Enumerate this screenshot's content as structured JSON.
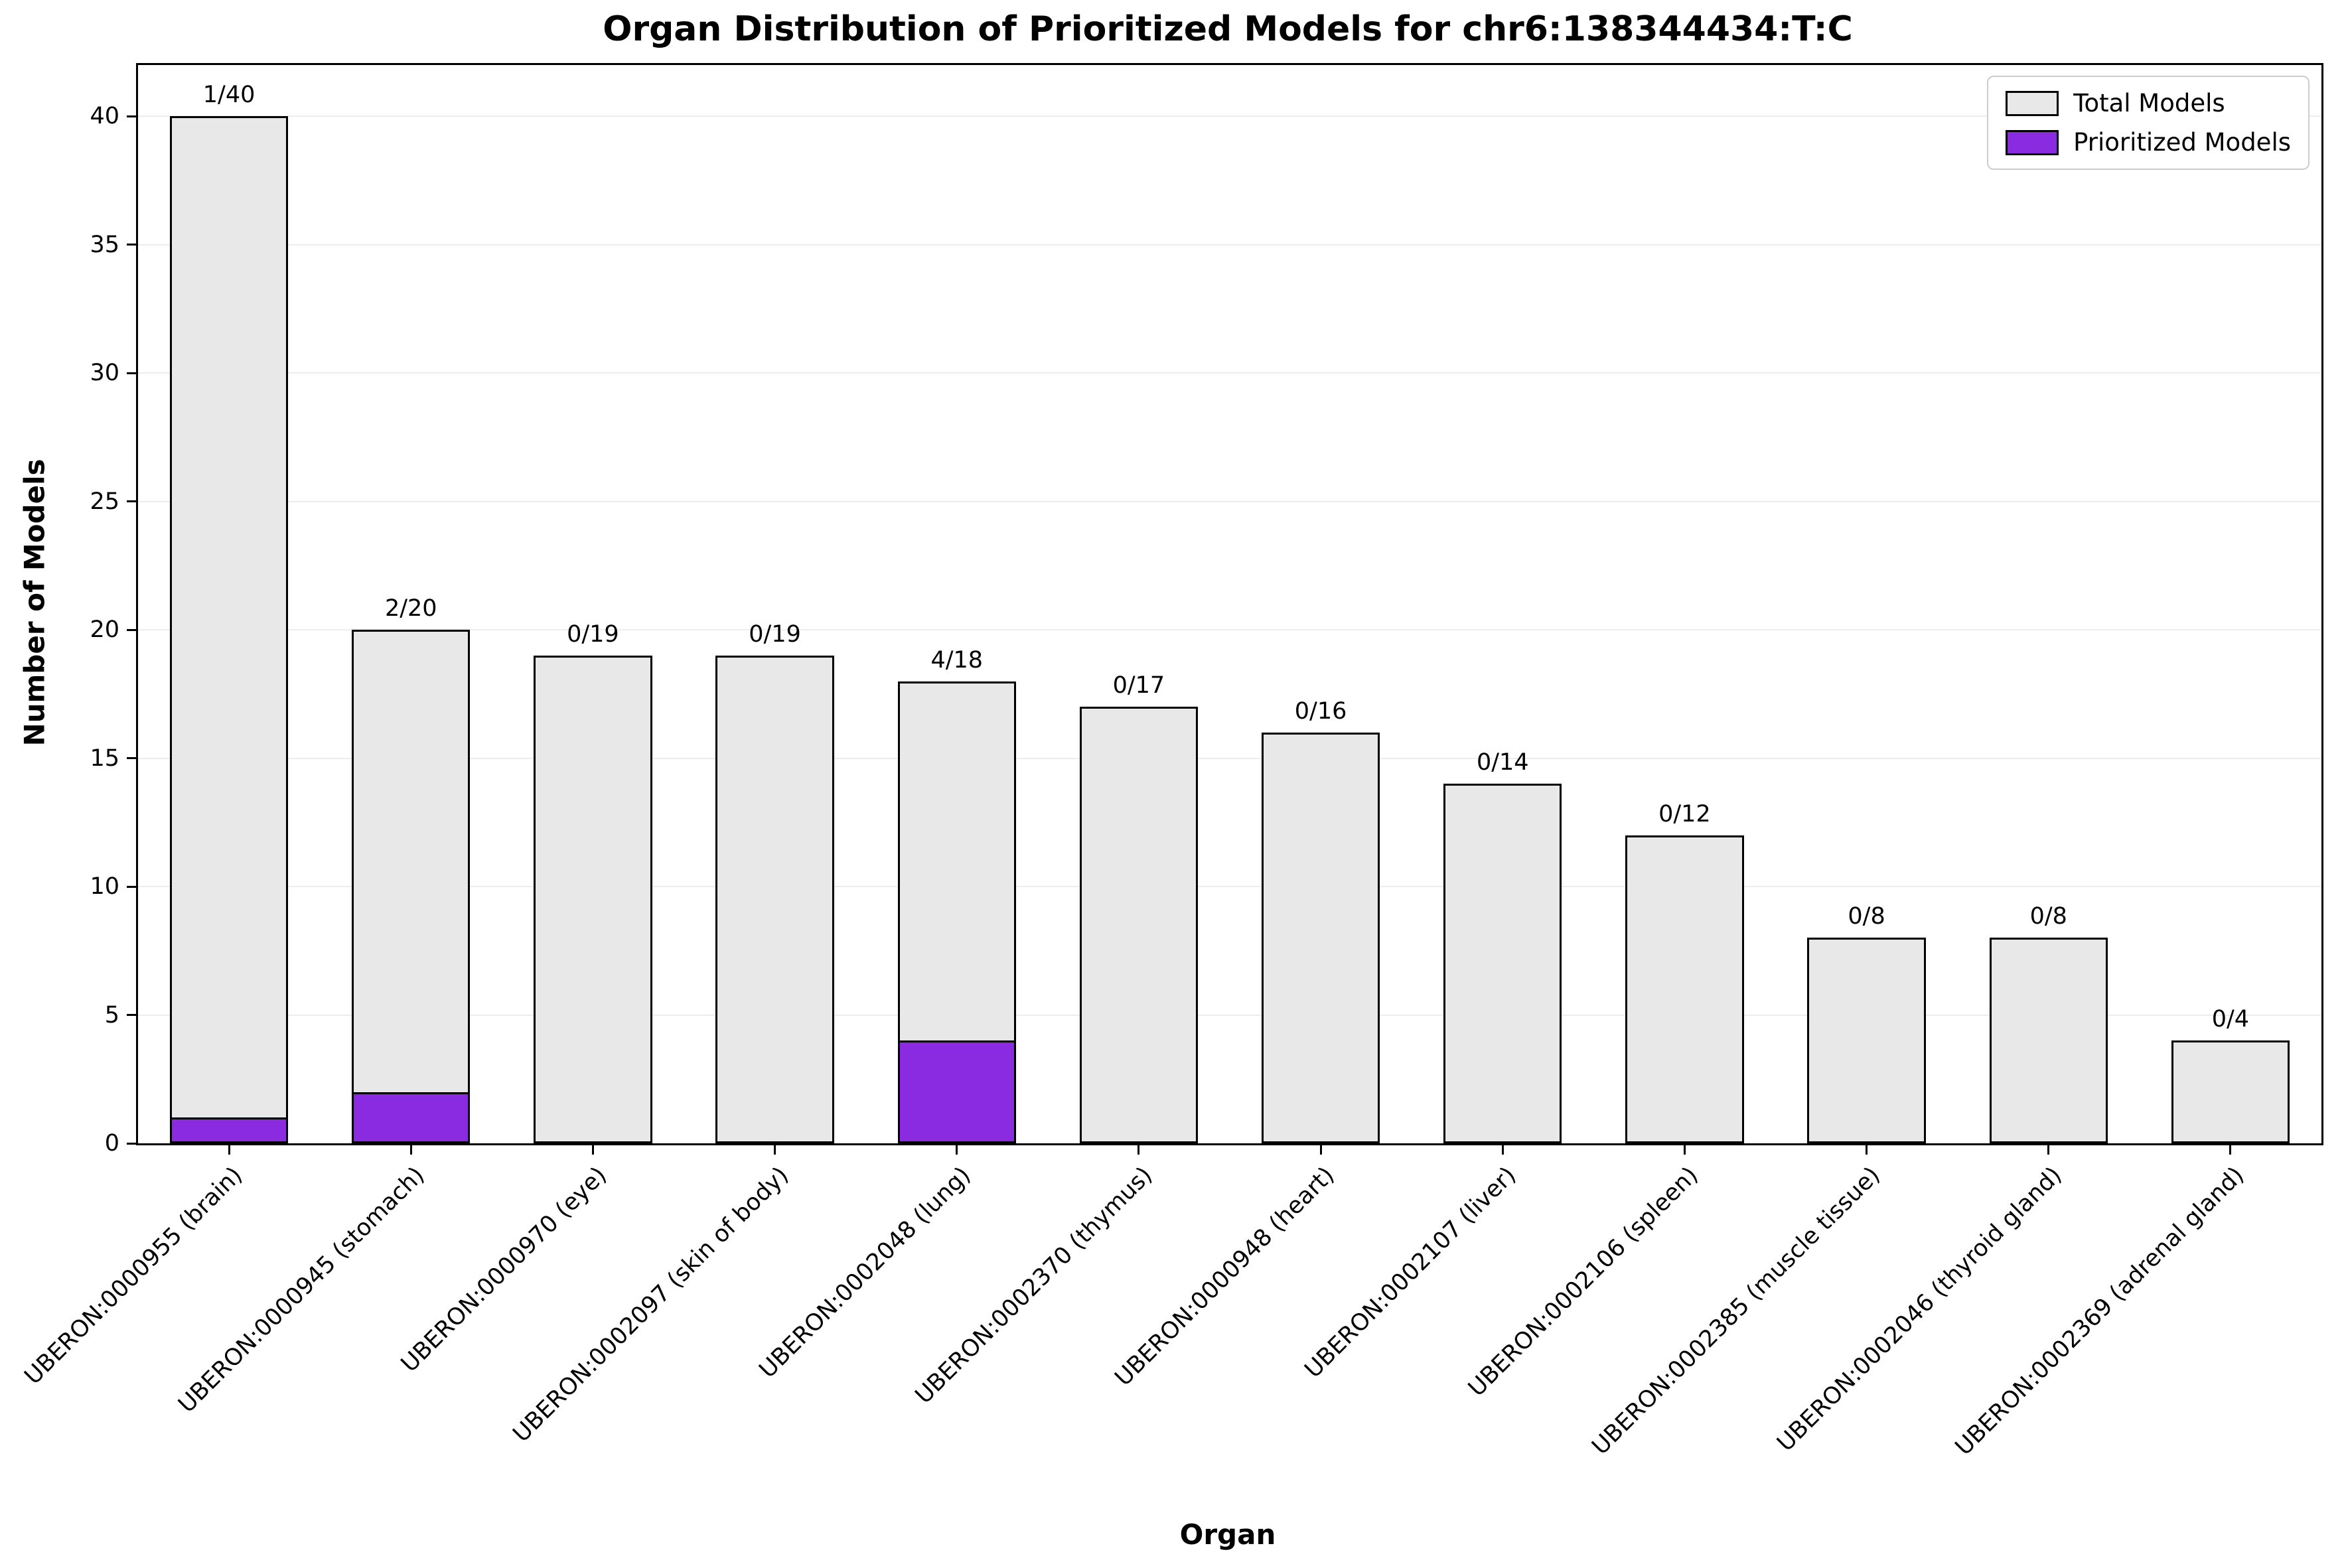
{
  "chart_data": {
    "type": "bar",
    "title": "Organ Distribution of Prioritized Models for chr6:138344434:T:C",
    "xlabel": "Organ",
    "ylabel": "Number of Models",
    "ylim": [
      0,
      42
    ],
    "yticks": [
      0,
      5,
      10,
      15,
      20,
      25,
      30,
      35,
      40
    ],
    "grid": "horizontal-faint",
    "legend_position": "upper-right",
    "legend": [
      {
        "label": "Total Models",
        "color": "#e8e8e8"
      },
      {
        "label": "Prioritized Models",
        "color": "#8a2be2"
      }
    ],
    "categories": [
      "UBERON:0000955 (brain)",
      "UBERON:0000945 (stomach)",
      "UBERON:0000970 (eye)",
      "UBERON:0002097 (skin of body)",
      "UBERON:0002048 (lung)",
      "UBERON:0002370 (thymus)",
      "UBERON:0000948 (heart)",
      "UBERON:0002107 (liver)",
      "UBERON:0002106 (spleen)",
      "UBERON:0002385 (muscle tissue)",
      "UBERON:0002046 (thyroid gland)",
      "UBERON:0002369 (adrenal gland)"
    ],
    "series": [
      {
        "name": "Total Models",
        "color": "#e8e8e8",
        "values": [
          40,
          20,
          19,
          19,
          18,
          17,
          16,
          14,
          12,
          8,
          8,
          4
        ]
      },
      {
        "name": "Prioritized Models",
        "color": "#8a2be2",
        "values": [
          1,
          2,
          0,
          0,
          4,
          0,
          0,
          0,
          0,
          0,
          0,
          0
        ]
      }
    ],
    "bar_labels": [
      "1/40",
      "2/20",
      "0/19",
      "0/19",
      "4/18",
      "0/17",
      "0/16",
      "0/14",
      "0/12",
      "0/8",
      "0/8",
      "0/4"
    ],
    "edge_color": "#000000"
  }
}
